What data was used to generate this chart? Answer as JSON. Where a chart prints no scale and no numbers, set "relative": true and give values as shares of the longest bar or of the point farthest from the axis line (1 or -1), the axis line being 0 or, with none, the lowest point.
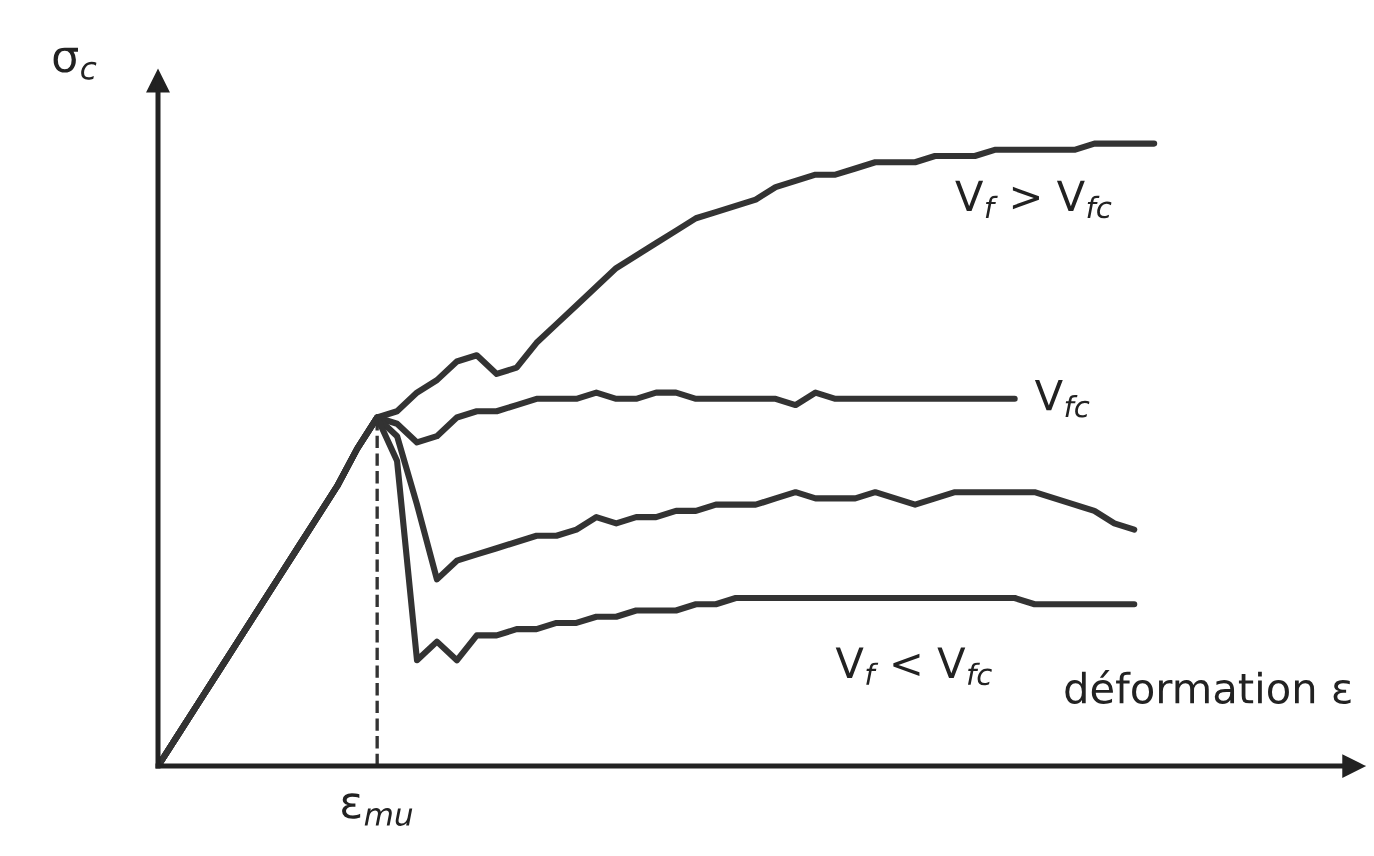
{
  "chart_data": {
    "type": "line",
    "relative": true,
    "xlabel": "déformation ε",
    "ylabel": "σ$_{c}$",
    "categories": [
      null,
      null,
      null,
      null,
      null,
      null,
      null,
      null,
      null,
      null,
      null,
      null,
      null,
      null,
      null,
      null,
      null,
      null,
      null,
      null,
      null,
      null,
      null,
      null,
      null,
      null,
      null,
      null,
      null,
      null,
      null,
      null,
      null,
      null,
      null,
      null,
      null,
      null,
      null,
      null,
      null,
      null,
      null,
      null,
      null,
      null,
      null,
      null,
      null,
      null,
      null
    ],
    "series": [
      {
        "name": "V$_{f}$ > V$_{fc}$",
        "color": "#333333",
        "values": [
          0,
          0.05,
          0.1,
          0.15,
          0.2,
          0.25,
          0.3,
          0.35,
          0.4,
          0.45,
          0.51,
          0.56,
          0.57,
          0.6,
          0.62,
          0.65,
          0.66,
          0.63,
          0.64,
          0.68,
          0.71,
          0.74,
          0.77,
          0.8,
          0.82,
          0.84,
          0.86,
          0.88,
          0.89,
          0.9,
          0.91,
          0.93,
          0.94,
          0.95,
          0.95,
          0.96,
          0.97,
          0.97,
          0.97,
          0.98,
          0.98,
          0.98,
          0.99,
          0.99,
          0.99,
          0.99,
          0.99,
          1.0,
          1.0,
          1.0,
          1.0
        ]
      },
      {
        "name": "V$_{fc}$",
        "color": "#333333",
        "values": [
          0,
          0.05,
          0.1,
          0.15,
          0.2,
          0.25,
          0.3,
          0.35,
          0.4,
          0.45,
          0.51,
          0.56,
          0.55,
          0.52,
          0.53,
          0.56,
          0.57,
          0.57,
          0.58,
          0.59,
          0.59,
          0.59,
          0.6,
          0.59,
          0.59,
          0.6,
          0.6,
          0.59,
          0.59,
          0.59,
          0.59,
          0.59,
          0.58,
          0.6,
          0.59,
          0.59,
          0.59,
          0.59,
          0.59,
          0.59,
          0.59,
          0.59,
          0.59,
          0.59,
          null,
          null,
          null,
          null,
          null,
          null,
          null
        ]
      },
      {
        "color": "#333333",
        "values": [
          0,
          0.05,
          0.1,
          0.15,
          0.2,
          0.25,
          0.3,
          0.35,
          0.4,
          0.45,
          0.51,
          0.56,
          0.53,
          0.42,
          0.3,
          0.33,
          0.34,
          0.35,
          0.36,
          0.37,
          0.37,
          0.38,
          0.4,
          0.39,
          0.4,
          0.4,
          0.41,
          0.41,
          0.42,
          0.42,
          0.42,
          0.43,
          0.44,
          0.43,
          0.43,
          0.43,
          0.44,
          0.43,
          0.42,
          0.43,
          0.44,
          0.44,
          0.44,
          0.44,
          0.44,
          0.43,
          0.42,
          0.41,
          0.39,
          0.38,
          null
        ]
      },
      {
        "name": "V$_{f}$ < V$_{fc}$",
        "color": "#333333",
        "values": [
          0,
          0.05,
          0.1,
          0.15,
          0.2,
          0.25,
          0.3,
          0.35,
          0.4,
          0.45,
          0.51,
          0.56,
          0.49,
          0.17,
          0.2,
          0.17,
          0.21,
          0.21,
          0.22,
          0.22,
          0.23,
          0.23,
          0.24,
          0.24,
          0.25,
          0.25,
          0.25,
          0.26,
          0.26,
          0.27,
          0.27,
          0.27,
          0.27,
          0.27,
          0.27,
          0.27,
          0.27,
          0.27,
          0.27,
          0.27,
          0.27,
          0.27,
          0.27,
          0.27,
          0.26,
          0.26,
          0.26,
          0.26,
          0.26,
          0.26,
          null
        ]
      }
    ],
    "annotations": [
      "ε$_{mu}$"
    ]
  }
}
